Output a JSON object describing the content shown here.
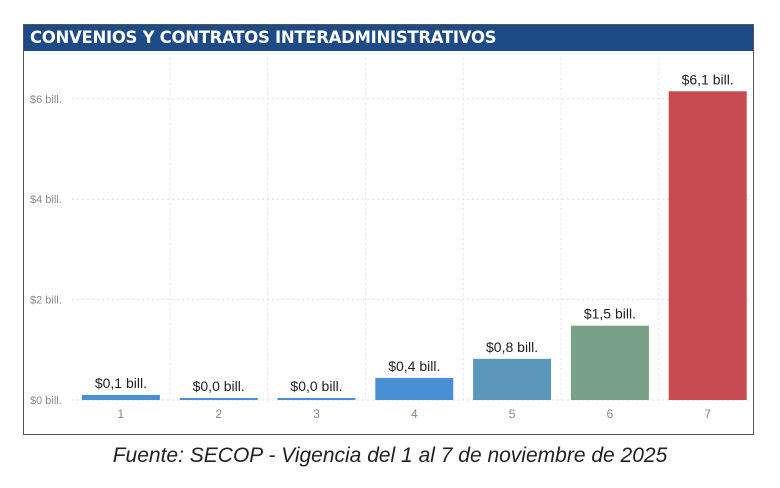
{
  "chart_data": {
    "type": "bar",
    "title": "CONVENIOS Y CONTRATOS INTERADMINISTRATIVOS",
    "categories": [
      "1",
      "2",
      "3",
      "4",
      "5",
      "6",
      "7"
    ],
    "values": [
      0.1,
      0.02,
      0.02,
      0.44,
      0.82,
      1.48,
      6.15
    ],
    "data_labels": [
      "$0,1 bill.",
      "$0,0 bill.",
      "$0,0 bill.",
      "$0,4 bill.",
      "$0,8 bill.",
      "$1,5 bill.",
      "$6,1 bill."
    ],
    "colors": [
      "#4a8fd6",
      "#4a8fd6",
      "#4a8fd6",
      "#4a8fd6",
      "#5b97b8",
      "#789f88",
      "#c84b52"
    ],
    "yticks": [
      0,
      2,
      4,
      6
    ],
    "ytick_labels": [
      "$0 bill.",
      "$2 bill.",
      "$4 bill.",
      "$6 bill."
    ],
    "ylim": [
      0,
      6.2
    ],
    "grid": true,
    "xlabel": "",
    "ylabel": ""
  },
  "caption": "Fuente: SECOP - Vigencia del 1 al 7 de noviembre de 2025"
}
